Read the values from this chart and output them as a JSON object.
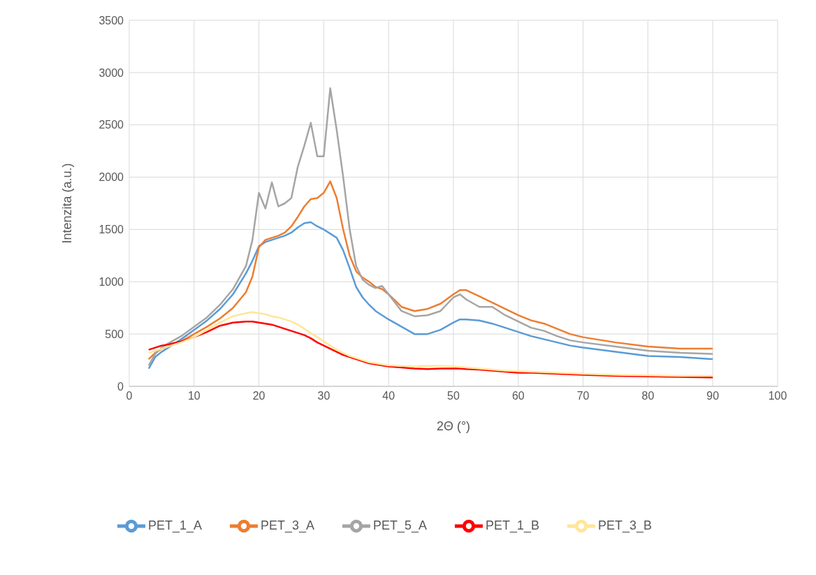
{
  "chart_data": {
    "type": "line",
    "xlabel": "2Θ (°)",
    "ylabel": "Intenzita (a.u.)",
    "x": [
      3,
      4,
      5,
      6,
      8,
      10,
      12,
      14,
      16,
      18,
      19,
      20,
      21,
      22,
      23,
      24,
      25,
      26,
      27,
      28,
      29,
      30,
      31,
      32,
      33,
      34,
      35,
      36,
      37,
      38,
      39,
      40,
      42,
      44,
      46,
      48,
      50,
      51,
      52,
      54,
      56,
      58,
      60,
      62,
      64,
      66,
      68,
      70,
      75,
      80,
      85,
      90
    ],
    "series": [
      {
        "name": "PET_1_A",
        "color": "#5b9bd5",
        "values": [
          170,
          280,
          330,
          370,
          450,
          540,
          630,
          740,
          880,
          1080,
          1200,
          1340,
          1380,
          1400,
          1420,
          1440,
          1470,
          1520,
          1560,
          1570,
          1530,
          1500,
          1460,
          1420,
          1300,
          1130,
          950,
          850,
          780,
          720,
          680,
          640,
          570,
          500,
          500,
          540,
          610,
          640,
          640,
          630,
          600,
          560,
          520,
          480,
          450,
          420,
          390,
          370,
          330,
          290,
          280,
          260
        ]
      },
      {
        "name": "PET_3_A",
        "color": "#ed7d31",
        "values": [
          260,
          320,
          360,
          380,
          430,
          500,
          570,
          650,
          750,
          900,
          1050,
          1330,
          1400,
          1420,
          1440,
          1470,
          1530,
          1620,
          1720,
          1790,
          1800,
          1850,
          1960,
          1800,
          1500,
          1250,
          1100,
          1040,
          1000,
          950,
          930,
          880,
          760,
          720,
          740,
          790,
          880,
          920,
          920,
          860,
          800,
          740,
          680,
          630,
          600,
          550,
          500,
          470,
          420,
          380,
          360,
          360
        ]
      },
      {
        "name": "PET_5_A",
        "color": "#a5a5a5",
        "values": [
          200,
          310,
          370,
          410,
          480,
          570,
          660,
          780,
          930,
          1150,
          1400,
          1850,
          1700,
          1950,
          1720,
          1750,
          1800,
          2100,
          2300,
          2520,
          2200,
          2200,
          2850,
          2450,
          2000,
          1500,
          1150,
          1020,
          970,
          940,
          960,
          880,
          720,
          670,
          680,
          720,
          850,
          880,
          830,
          760,
          760,
          680,
          620,
          560,
          530,
          480,
          440,
          420,
          380,
          340,
          320,
          310
        ]
      },
      {
        "name": "PET_1_B",
        "color": "#ff0000",
        "values": [
          350,
          370,
          390,
          400,
          430,
          470,
          520,
          580,
          610,
          620,
          620,
          610,
          600,
          590,
          570,
          550,
          530,
          510,
          490,
          460,
          420,
          390,
          360,
          330,
          300,
          280,
          260,
          240,
          220,
          210,
          200,
          190,
          180,
          170,
          165,
          170,
          170,
          170,
          165,
          160,
          150,
          140,
          130,
          130,
          125,
          120,
          115,
          110,
          100,
          95,
          90,
          85
        ]
      },
      {
        "name": "PET_3_B",
        "color": "#ffe699",
        "values": [
          320,
          340,
          360,
          380,
          420,
          470,
          540,
          610,
          670,
          700,
          710,
          700,
          690,
          670,
          660,
          640,
          620,
          590,
          550,
          510,
          470,
          430,
          390,
          350,
          320,
          290,
          270,
          250,
          230,
          220,
          210,
          200,
          195,
          190,
          195,
          195,
          190,
          185,
          180,
          170,
          160,
          150,
          145,
          140,
          135,
          130,
          125,
          120,
          110,
          105,
          100,
          100
        ]
      }
    ],
    "xlim": [
      0,
      100
    ],
    "xticks": [
      0,
      10,
      20,
      30,
      40,
      50,
      60,
      70,
      80,
      90,
      100
    ],
    "ylim": [
      0,
      3500
    ],
    "yticks": [
      0,
      500,
      1000,
      1500,
      2000,
      2500,
      3000,
      3500
    ],
    "grid": true,
    "legend": "bottom",
    "marker": "none",
    "line_style": "solid"
  }
}
